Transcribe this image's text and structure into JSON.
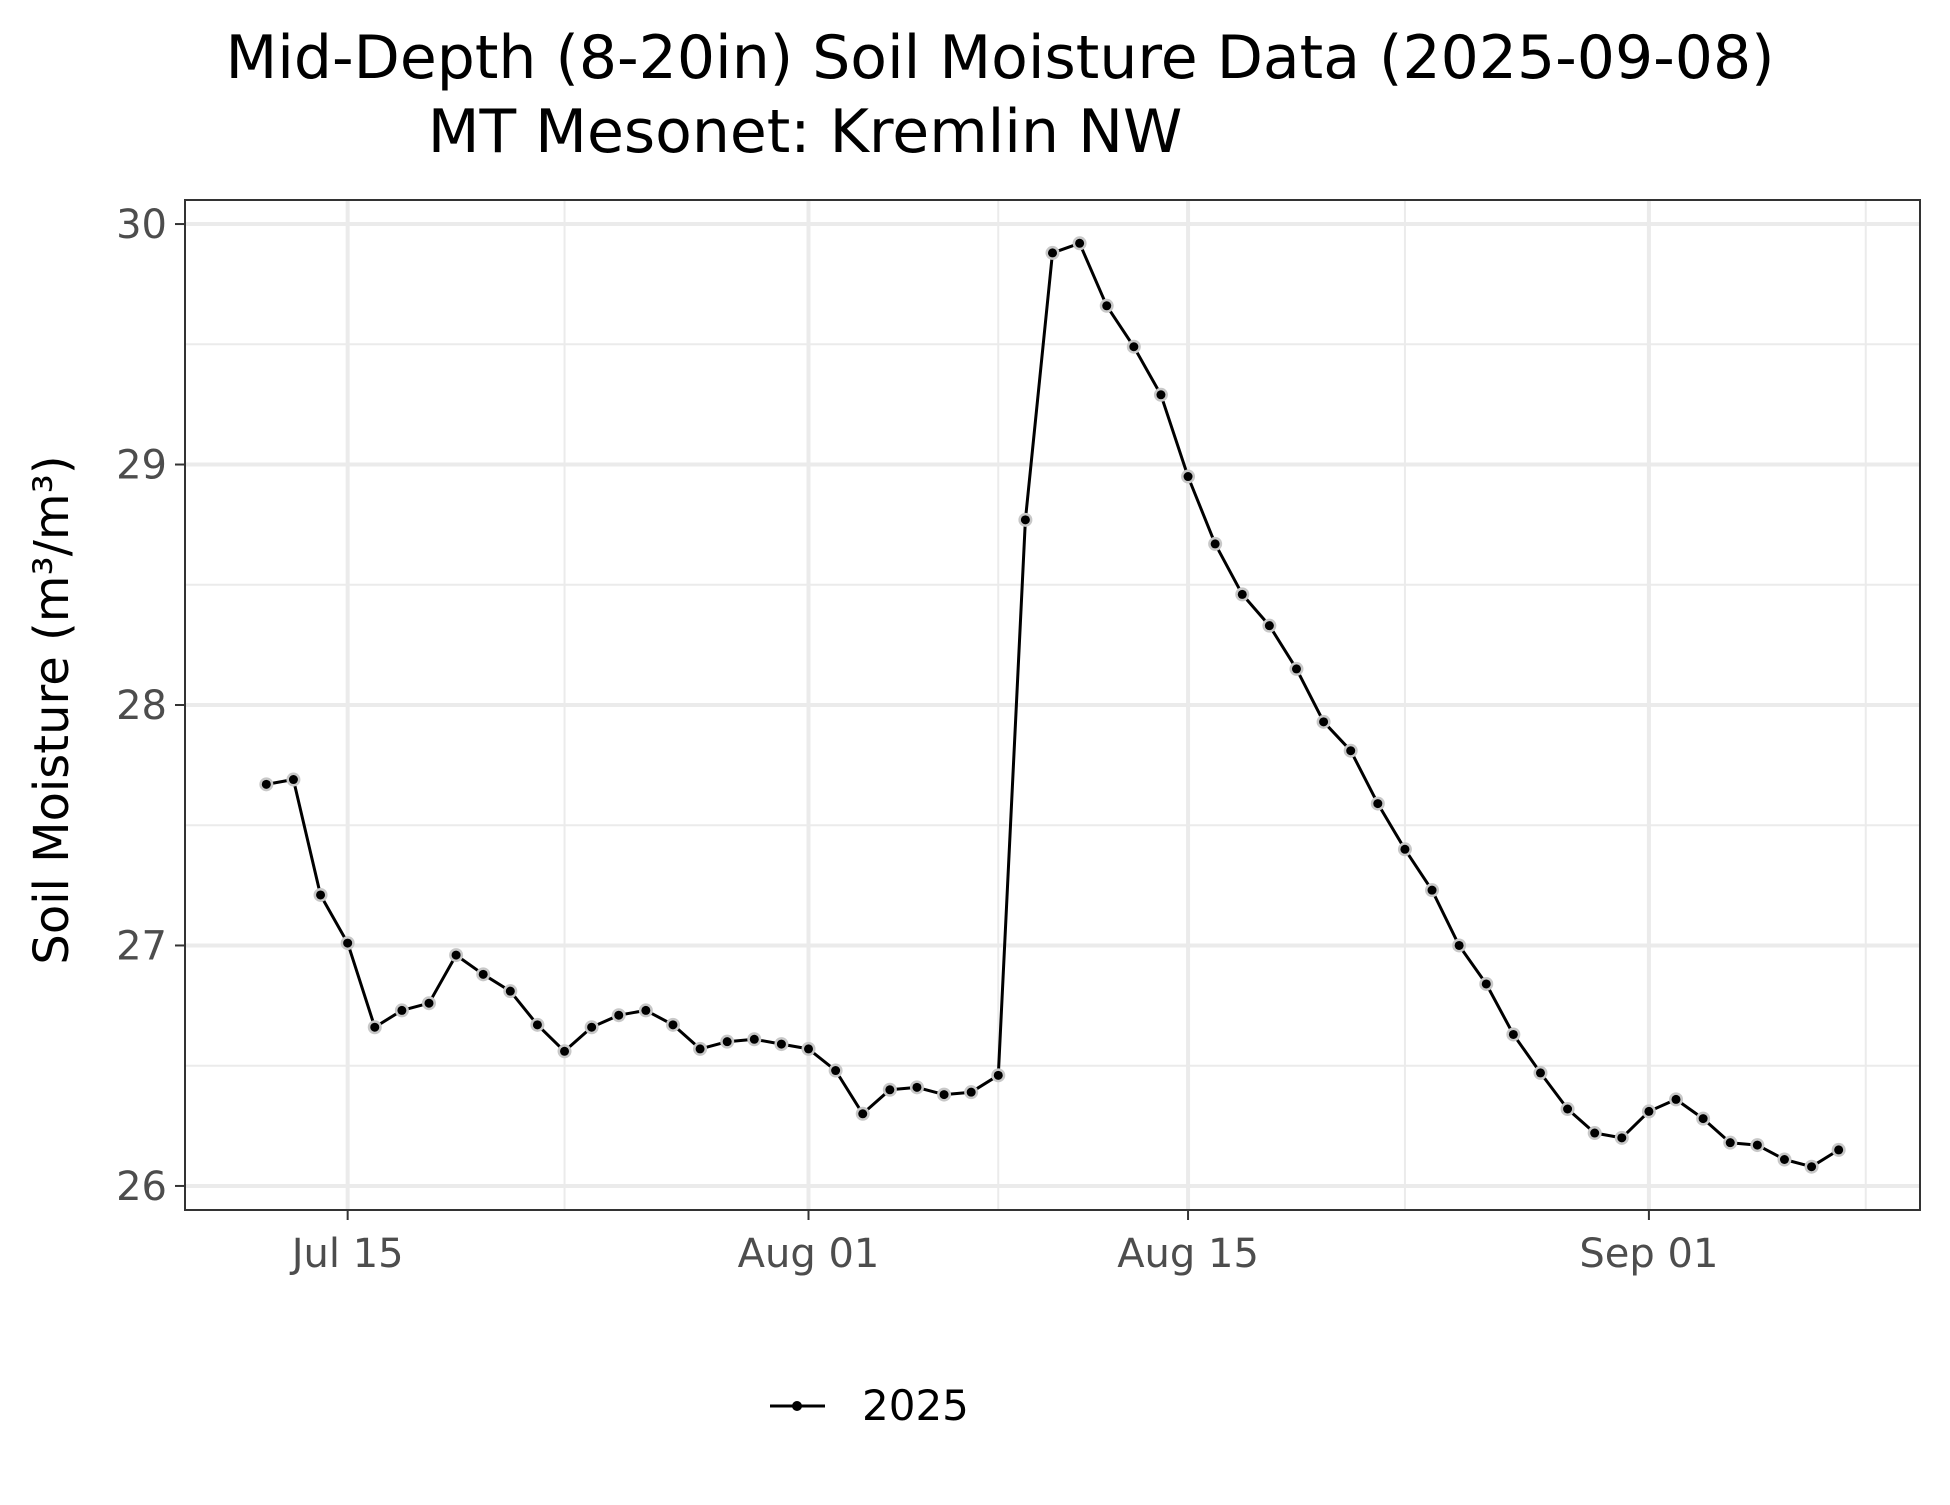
{
  "chart_data": {
    "type": "line",
    "title": "Mid-Depth (8-20in) Soil Moisture Data (2025-09-08)",
    "subtitle": "MT Mesonet: Kremlin NW",
    "xlabel": "",
    "ylabel": "Soil Moisture (m³/m³)",
    "xlim": [
      "2025-07-09",
      "2025-09-11"
    ],
    "ylim": [
      25.9,
      30.1
    ],
    "x_ticks": [
      {
        "date": "2025-07-15",
        "label": "Jul 15"
      },
      {
        "date": "2025-08-01",
        "label": "Aug 01"
      },
      {
        "date": "2025-08-15",
        "label": "Aug 15"
      },
      {
        "date": "2025-09-01",
        "label": "Sep 01"
      }
    ],
    "x_minor_grid": [
      "2025-07-23",
      "2025-08-08",
      "2025-08-23",
      "2025-09-09"
    ],
    "y_ticks": [
      26,
      27,
      28,
      29,
      30
    ],
    "y_minor_grid": [
      26.5,
      27.5,
      28.5,
      29.5
    ],
    "grid": true,
    "legend_position": "bottom",
    "line_color": "#000000",
    "marker_color": "#000000",
    "marker_halo_color": "#c8c8c8",
    "series": [
      {
        "name": "2025",
        "x": [
          "2025-07-12",
          "2025-07-13",
          "2025-07-14",
          "2025-07-15",
          "2025-07-16",
          "2025-07-17",
          "2025-07-18",
          "2025-07-19",
          "2025-07-20",
          "2025-07-21",
          "2025-07-22",
          "2025-07-23",
          "2025-07-24",
          "2025-07-25",
          "2025-07-26",
          "2025-07-27",
          "2025-07-28",
          "2025-07-29",
          "2025-07-30",
          "2025-07-31",
          "2025-08-01",
          "2025-08-02",
          "2025-08-03",
          "2025-08-04",
          "2025-08-05",
          "2025-08-06",
          "2025-08-07",
          "2025-08-08",
          "2025-08-09",
          "2025-08-10",
          "2025-08-11",
          "2025-08-12",
          "2025-08-13",
          "2025-08-14",
          "2025-08-15",
          "2025-08-16",
          "2025-08-17",
          "2025-08-18",
          "2025-08-19",
          "2025-08-20",
          "2025-08-21",
          "2025-08-22",
          "2025-08-23",
          "2025-08-24",
          "2025-08-25",
          "2025-08-26",
          "2025-08-27",
          "2025-08-28",
          "2025-08-29",
          "2025-08-30",
          "2025-08-31",
          "2025-09-01",
          "2025-09-02",
          "2025-09-03",
          "2025-09-04",
          "2025-09-05",
          "2025-09-06",
          "2025-09-07",
          "2025-09-08"
        ],
        "values": [
          27.67,
          27.69,
          27.21,
          27.01,
          26.66,
          26.73,
          26.76,
          26.96,
          26.88,
          26.81,
          26.67,
          26.56,
          26.66,
          26.71,
          26.73,
          26.67,
          26.57,
          26.6,
          26.61,
          26.59,
          26.57,
          26.48,
          26.3,
          26.4,
          26.41,
          26.38,
          26.39,
          26.46,
          28.77,
          29.88,
          29.92,
          29.66,
          29.49,
          29.29,
          28.95,
          28.67,
          28.46,
          28.33,
          28.15,
          27.93,
          27.81,
          27.59,
          27.4,
          27.23,
          27.0,
          26.84,
          26.63,
          26.47,
          26.32,
          26.22,
          26.2,
          26.31,
          26.36,
          26.28,
          26.18,
          26.17,
          26.11,
          26.08,
          26.15
        ]
      }
    ]
  }
}
